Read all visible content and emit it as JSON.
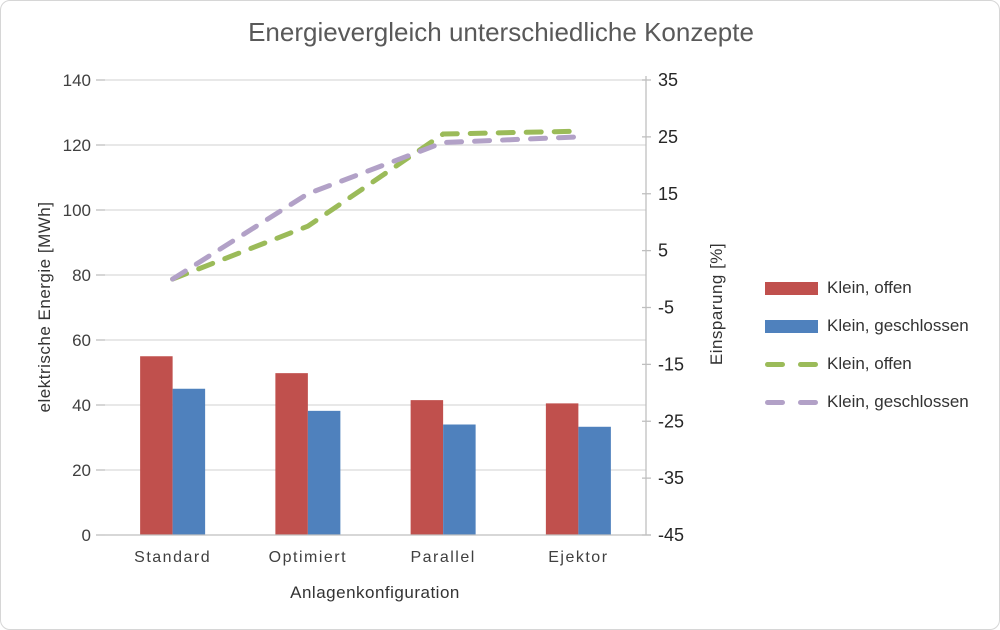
{
  "chart": {
    "title": "Energievergleich unterschiedliche Konzepte",
    "x_axis": {
      "title": "Anlagenkonfiguration"
    },
    "y_left": {
      "title": "elektrische Energie [MWh]",
      "ticks": [
        "0",
        "20",
        "40",
        "60",
        "80",
        "100",
        "120",
        "140"
      ]
    },
    "y_right": {
      "title": "Einsparung [%]",
      "ticks": [
        "35",
        "25",
        "15",
        "5",
        "-5",
        "-15",
        "-25",
        "-35",
        "-45"
      ]
    }
  },
  "chart_data": {
    "type": "combo-bar-line",
    "title": "Energievergleich unterschiedliche Konzepte",
    "xlabel": "Anlagenkonfiguration",
    "ylabel_left": "elektrische Energie [MWh]",
    "ylabel_right": "Einsparung [%]",
    "categories": [
      "Standard",
      "Optimiert",
      "Parallel",
      "Ejektor"
    ],
    "series": [
      {
        "name": "Klein, offen",
        "type": "bar",
        "axis": "left",
        "color": "#C0504D",
        "values": [
          55,
          49.8,
          41.5,
          40.5
        ]
      },
      {
        "name": "Klein, geschlossen",
        "type": "bar",
        "axis": "left",
        "color": "#4F81BD",
        "values": [
          45,
          38.2,
          34,
          33.3
        ]
      },
      {
        "name": "Klein, offen",
        "type": "line",
        "style": "dashed",
        "axis": "right",
        "color": "#9BBB59",
        "values": [
          0,
          9.3,
          25.5,
          26
        ]
      },
      {
        "name": "Klein, geschlossen",
        "type": "line",
        "style": "dashed",
        "axis": "right",
        "color": "#B2A1C7",
        "values": [
          0,
          15,
          24,
          25
        ]
      }
    ],
    "ylim_left": [
      0,
      140
    ],
    "ylim_right": [
      -45,
      35
    ],
    "grid": true,
    "legend_position": "right",
    "colors": {
      "gridline": "#D9D9D9",
      "axis_line": "#BFBFBF",
      "tick_label": "#404040",
      "title": "#595959"
    }
  },
  "legend": {
    "items": [
      {
        "label": "Klein, offen",
        "swatch": "bar",
        "color": "#C0504D"
      },
      {
        "label": "Klein, geschlossen",
        "swatch": "bar",
        "color": "#4F81BD"
      },
      {
        "label": "Klein, offen",
        "swatch": "dashes",
        "color": "#9BBB59"
      },
      {
        "label": "Klein, geschlossen",
        "swatch": "dashes",
        "color": "#B2A1C7"
      }
    ]
  }
}
